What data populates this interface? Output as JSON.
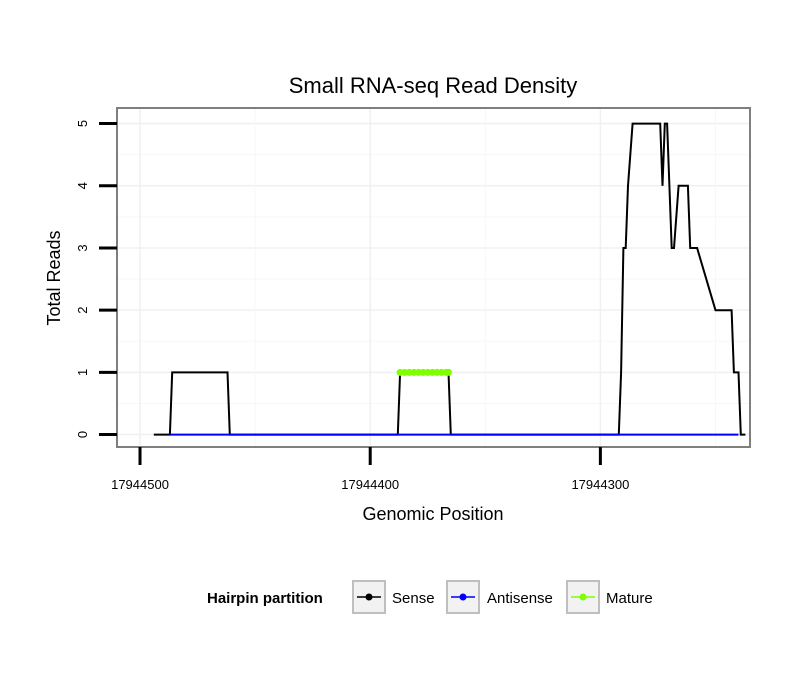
{
  "chart_data": {
    "type": "line",
    "title": "Small RNA-seq Read Density",
    "xlabel": "Genomic Position",
    "ylabel": "Total Reads",
    "x_reversed": true,
    "xlim": [
      17944510,
      17944235
    ],
    "ylim": [
      -0.2,
      5.25
    ],
    "x_ticks": [
      17944500,
      17944400,
      17944300
    ],
    "x_tick_labels": [
      "17944500",
      "17944400",
      "17944300"
    ],
    "y_ticks": [
      0,
      1,
      2,
      3,
      4,
      5
    ],
    "y_tick_labels": [
      "0",
      "1",
      "2",
      "3",
      "4",
      "5"
    ],
    "grid": true,
    "legend": {
      "title": "Hairpin partition",
      "position": "bottom",
      "entries": [
        {
          "label": "Sense",
          "color": "#000000"
        },
        {
          "label": "Antisense",
          "color": "#0000ff"
        },
        {
          "label": "Mature",
          "color": "#7fff00"
        }
      ]
    },
    "series": [
      {
        "name": "Sense",
        "color": "#000000",
        "x": [
          17944494,
          17944487,
          17944486,
          17944462,
          17944461,
          17944388,
          17944387,
          17944366,
          17944365,
          17944292,
          17944291,
          17944290,
          17944289,
          17944288,
          17944286,
          17944274,
          17944273,
          17944272,
          17944271,
          17944269,
          17944268,
          17944266,
          17944262,
          17944261,
          17944258,
          17944250,
          17944244,
          17944243,
          17944242,
          17944240,
          17944239,
          17944237
        ],
        "y": [
          0,
          0,
          1,
          1,
          0,
          0,
          1,
          1,
          0,
          0,
          1,
          3,
          3,
          4,
          5,
          5,
          4,
          5,
          5,
          3,
          3,
          4,
          4,
          3,
          3,
          2,
          2,
          2,
          1,
          1,
          0,
          0
        ]
      },
      {
        "name": "Antisense",
        "color": "#0000ff",
        "x": [
          17944487,
          17944240
        ],
        "y": [
          0,
          0
        ]
      },
      {
        "name": "Mature",
        "color": "#7fff00",
        "x": [
          17944387,
          17944385,
          17944383,
          17944381,
          17944379,
          17944377,
          17944375,
          17944373,
          17944371,
          17944369,
          17944367,
          17944366
        ],
        "y": [
          1,
          1,
          1,
          1,
          1,
          1,
          1,
          1,
          1,
          1,
          1,
          1
        ]
      }
    ]
  }
}
